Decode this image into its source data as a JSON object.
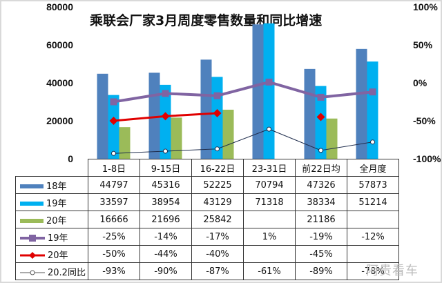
{
  "chart_data": {
    "type": "bar",
    "title": "乘联会厂家3月周度零售数量和同比增速",
    "categories": [
      "1-8日",
      "9-15日",
      "16-22日",
      "23-31日",
      "前22日均",
      "全月度"
    ],
    "left_axis": {
      "ticks": [
        "80000",
        "60000",
        "40000",
        "20000",
        "0"
      ],
      "ylim": [
        0,
        80000
      ]
    },
    "right_axis": {
      "ticks": [
        "100%",
        "50%",
        "0%",
        "-50%",
        "-100%"
      ],
      "ylim": [
        -100,
        100
      ]
    },
    "bar_series": [
      {
        "name": "18年",
        "color": "#4f81bd",
        "values": [
          44797,
          45316,
          52225,
          70794,
          47326,
          57873
        ]
      },
      {
        "name": "19年",
        "color": "#00b0f0",
        "values": [
          33597,
          38954,
          43129,
          71318,
          38334,
          51214
        ]
      },
      {
        "name": "20年",
        "color": "#9bbb59",
        "values": [
          16666,
          21696,
          25842,
          null,
          21186,
          null
        ]
      }
    ],
    "line_series": [
      {
        "name": "19年",
        "color": "#8064a2",
        "marker": "square",
        "values": [
          -25,
          -14,
          -17,
          1,
          -19,
          -12
        ],
        "labels": [
          "-25%",
          "-14%",
          "-17%",
          "1%",
          "-19%",
          "-12%"
        ]
      },
      {
        "name": "20年",
        "color": "#e00000",
        "marker": "diamond",
        "values": [
          -50,
          -44,
          -40,
          null,
          -45,
          null
        ],
        "labels": [
          "-50%",
          "-44%",
          "-40%",
          "",
          "-45%",
          ""
        ]
      },
      {
        "name": "20.2同比",
        "color": "#1f2d4d",
        "marker": "circle",
        "values": [
          -93,
          -90,
          -87,
          -61,
          -89,
          -78
        ],
        "labels": [
          "-93%",
          "-90%",
          "-87%",
          "-61%",
          "-89%",
          "-78%"
        ]
      }
    ],
    "legend_position": "data-table",
    "grid": false
  },
  "table": {
    "rows": [
      {
        "label": "18年",
        "cells": [
          "44797",
          "45316",
          "52225",
          "70794",
          "47326",
          "57873"
        ]
      },
      {
        "label": "19年",
        "cells": [
          "33597",
          "38954",
          "43129",
          "71318",
          "38334",
          "51214"
        ]
      },
      {
        "label": "20年",
        "cells": [
          "16666",
          "21696",
          "25842",
          "",
          "21186",
          ""
        ]
      },
      {
        "label": "19年",
        "cells": [
          "-25%",
          "-14%",
          "-17%",
          "1%",
          "-19%",
          "-12%"
        ]
      },
      {
        "label": "20年",
        "cells": [
          "-50%",
          "-44%",
          "-40%",
          "",
          "-45%",
          ""
        ]
      },
      {
        "label": "20.2同比",
        "cells": [
          "-93%",
          "-90%",
          "-87%",
          "-61%",
          "-89%",
          "-78%"
        ]
      }
    ]
  },
  "watermark": "阿贵看车"
}
